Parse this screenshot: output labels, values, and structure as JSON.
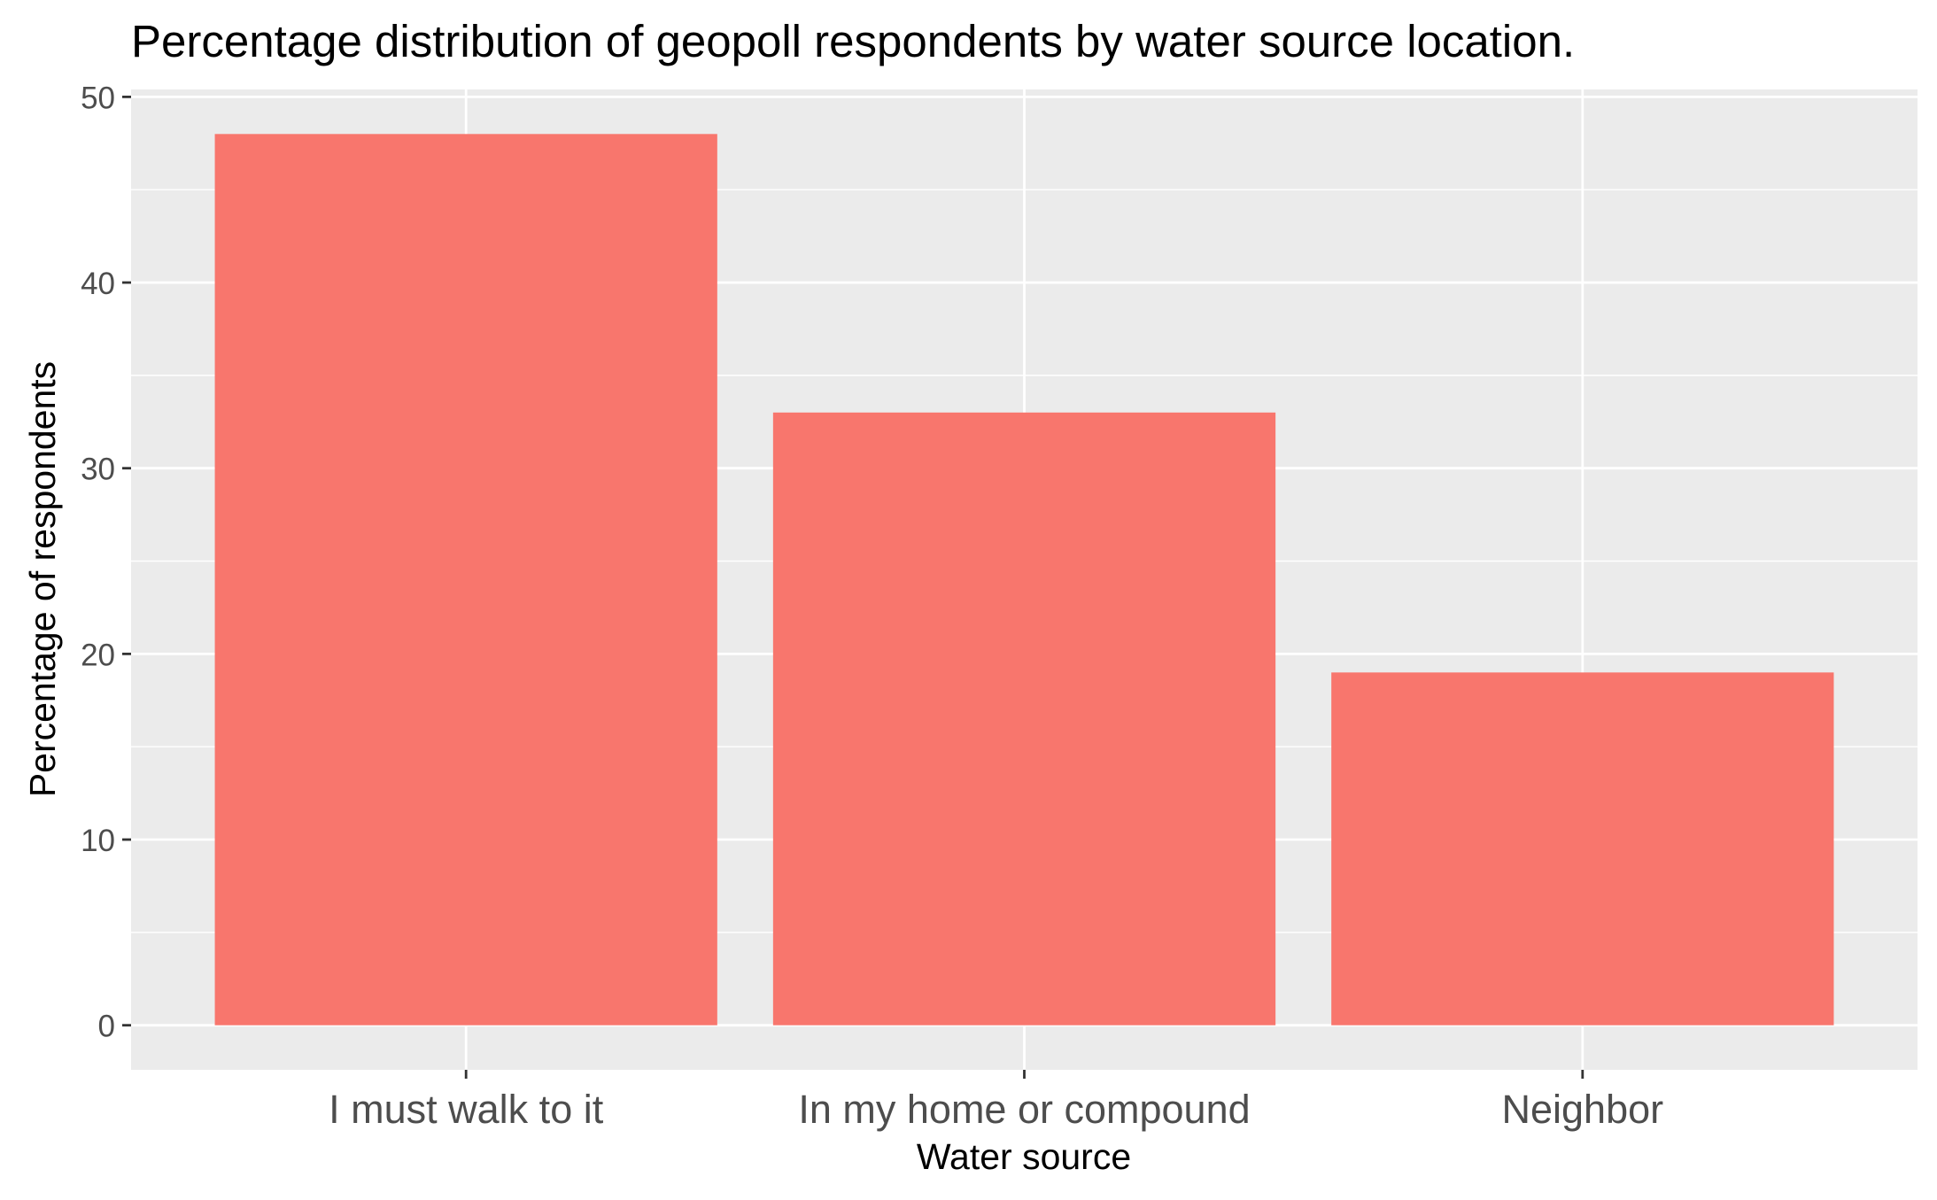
{
  "chart_data": {
    "type": "bar",
    "title": "Percentage distribution of geopoll respondents by water source location.",
    "xlabel": "Water source",
    "ylabel": "Percentage of respondents",
    "categories": [
      "I must walk to it",
      "In my home or compound",
      "Neighbor"
    ],
    "values": [
      48,
      33,
      19
    ],
    "ylim": [
      -2.4,
      50.4
    ],
    "yticks": [
      0,
      10,
      20,
      30,
      40,
      50
    ],
    "ytick_labels": [
      "0",
      "10",
      "20",
      "30",
      "40",
      "50"
    ],
    "grid": true,
    "legend": "none",
    "colors": {
      "bar": "#F8766D",
      "panel": "#EBEBEB",
      "grid_major": "#FFFFFF",
      "tick_text": "#4D4D4D",
      "axis_title": "#000000"
    }
  }
}
